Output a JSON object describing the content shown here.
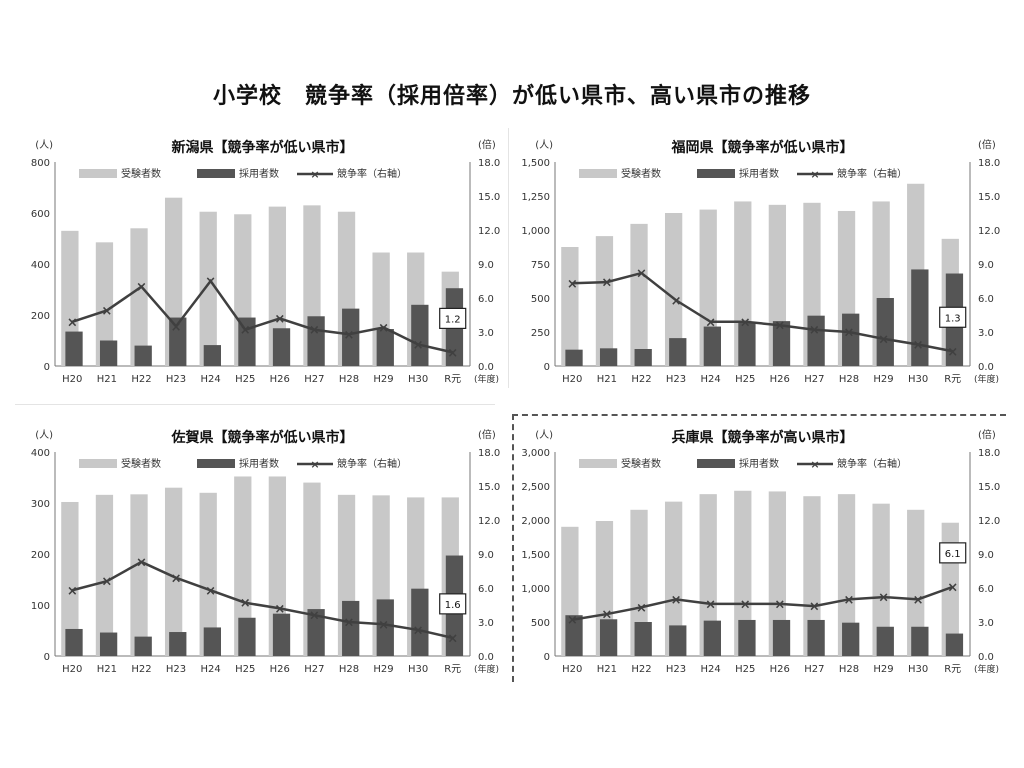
{
  "title": "小学校　競争率（採用倍率）が低い県市、高い県市の推移",
  "chart_data": [
    {
      "type": "bar",
      "title": "新潟県【競争率が低い県市】",
      "left_unit": "(人)",
      "right_unit": "(倍)",
      "year_unit": "(年度)",
      "categories": [
        "H20",
        "H21",
        "H22",
        "H23",
        "H24",
        "H25",
        "H26",
        "H27",
        "H28",
        "H29",
        "H30",
        "R元"
      ],
      "ylim": [
        0,
        800
      ],
      "yticks": [
        "0",
        "200",
        "400",
        "600",
        "800"
      ],
      "y2lim": [
        0,
        18
      ],
      "y2ticks": [
        "0.0",
        "3.0",
        "6.0",
        "9.0",
        "12.0",
        "15.0",
        "18.0"
      ],
      "legend": [
        "受験者数",
        "採用者数",
        "競争率（右軸）"
      ],
      "series": [
        {
          "name": "受験者数",
          "type": "bar",
          "values": [
            530,
            485,
            540,
            660,
            605,
            595,
            625,
            630,
            605,
            445,
            445,
            370
          ]
        },
        {
          "name": "採用者数",
          "type": "bar",
          "values": [
            135,
            100,
            80,
            190,
            82,
            190,
            148,
            195,
            225,
            145,
            240,
            305
          ]
        },
        {
          "name": "競争率（右軸）",
          "type": "line",
          "axis": "right",
          "values": [
            3.9,
            4.9,
            7.0,
            3.5,
            7.5,
            3.2,
            4.2,
            3.2,
            2.8,
            3.4,
            1.9,
            1.2
          ]
        }
      ],
      "callout": "1.2",
      "colors": {
        "applicants": "#c8c8c8",
        "hires": "#555555",
        "ratio": "#404040"
      }
    },
    {
      "type": "bar",
      "title": "福岡県【競争率が低い県市】",
      "left_unit": "(人)",
      "right_unit": "(倍)",
      "year_unit": "(年度)",
      "categories": [
        "H20",
        "H21",
        "H22",
        "H23",
        "H24",
        "H25",
        "H26",
        "H27",
        "H28",
        "H29",
        "H30",
        "R元"
      ],
      "ylim": [
        0,
        1500
      ],
      "yticks": [
        "0",
        "250",
        "500",
        "750",
        "1,000",
        "1,250",
        "1,500"
      ],
      "y2lim": [
        0,
        18
      ],
      "y2ticks": [
        "0.0",
        "3.0",
        "6.0",
        "9.0",
        "12.0",
        "15.0",
        "18.0"
      ],
      "legend": [
        "受験者数",
        "採用者数",
        "競争率（右軸）"
      ],
      "series": [
        {
          "name": "受験者数",
          "type": "bar",
          "values": [
            875,
            955,
            1045,
            1125,
            1150,
            1210,
            1185,
            1200,
            1140,
            1210,
            1340,
            935
          ]
        },
        {
          "name": "採用者数",
          "type": "bar",
          "values": [
            120,
            130,
            125,
            205,
            290,
            320,
            330,
            370,
            385,
            500,
            710,
            680
          ]
        },
        {
          "name": "競争率（右軸）",
          "type": "line",
          "axis": "right",
          "values": [
            7.3,
            7.4,
            8.2,
            5.8,
            3.9,
            3.9,
            3.6,
            3.2,
            3.0,
            2.4,
            1.9,
            1.3
          ]
        }
      ],
      "callout": "1.3",
      "colors": {
        "applicants": "#c8c8c8",
        "hires": "#555555",
        "ratio": "#404040"
      }
    },
    {
      "type": "bar",
      "title": "佐賀県【競争率が低い県市】",
      "left_unit": "(人)",
      "right_unit": "(倍)",
      "year_unit": "(年度)",
      "categories": [
        "H20",
        "H21",
        "H22",
        "H23",
        "H24",
        "H25",
        "H26",
        "H27",
        "H28",
        "H29",
        "H30",
        "R元"
      ],
      "ylim": [
        0,
        400
      ],
      "yticks": [
        "0",
        "100",
        "200",
        "300",
        "400"
      ],
      "y2lim": [
        0,
        18
      ],
      "y2ticks": [
        "0.0",
        "3.0",
        "6.0",
        "9.0",
        "12.0",
        "15.0",
        "18.0"
      ],
      "legend": [
        "受験者数",
        "採用者数",
        "競争率（右軸）"
      ],
      "series": [
        {
          "name": "受験者数",
          "type": "bar",
          "values": [
            302,
            316,
            317,
            330,
            320,
            352,
            352,
            340,
            316,
            315,
            311,
            311
          ]
        },
        {
          "name": "採用者数",
          "type": "bar",
          "values": [
            53,
            46,
            38,
            47,
            56,
            75,
            83,
            92,
            108,
            111,
            132,
            197
          ]
        },
        {
          "name": "競争率（右軸）",
          "type": "line",
          "axis": "right",
          "values": [
            5.8,
            6.6,
            8.3,
            6.9,
            5.8,
            4.7,
            4.2,
            3.6,
            3.0,
            2.8,
            2.3,
            1.6
          ]
        }
      ],
      "callout": "1.6",
      "colors": {
        "applicants": "#c8c8c8",
        "hires": "#555555",
        "ratio": "#404040"
      }
    },
    {
      "type": "bar",
      "title": "兵庫県【競争率が高い県市】",
      "left_unit": "(人)",
      "right_unit": "(倍)",
      "year_unit": "(年度)",
      "categories": [
        "H20",
        "H21",
        "H22",
        "H23",
        "H24",
        "H25",
        "H26",
        "H27",
        "H28",
        "H29",
        "H30",
        "R元"
      ],
      "ylim": [
        0,
        3000
      ],
      "yticks": [
        "0",
        "500",
        "1,000",
        "1,500",
        "2,000",
        "2,500",
        "3,000"
      ],
      "y2lim": [
        0,
        18
      ],
      "y2ticks": [
        "0.0",
        "3.0",
        "6.0",
        "9.0",
        "12.0",
        "15.0",
        "18.0"
      ],
      "legend": [
        "受験者数",
        "採用者数",
        "競争率（右軸）"
      ],
      "series": [
        {
          "name": "受験者数",
          "type": "bar",
          "values": [
            1900,
            1985,
            2150,
            2270,
            2380,
            2430,
            2420,
            2350,
            2380,
            2240,
            2150,
            1960
          ]
        },
        {
          "name": "採用者数",
          "type": "bar",
          "values": [
            600,
            540,
            500,
            450,
            520,
            530,
            530,
            530,
            490,
            430,
            430,
            330
          ]
        },
        {
          "name": "競争率（右軸）",
          "type": "line",
          "axis": "right",
          "values": [
            3.2,
            3.7,
            4.3,
            5.0,
            4.6,
            4.6,
            4.6,
            4.4,
            5.0,
            5.2,
            5.0,
            6.1
          ]
        }
      ],
      "callout": "6.1",
      "colors": {
        "applicants": "#c8c8c8",
        "hires": "#555555",
        "ratio": "#404040"
      }
    }
  ]
}
